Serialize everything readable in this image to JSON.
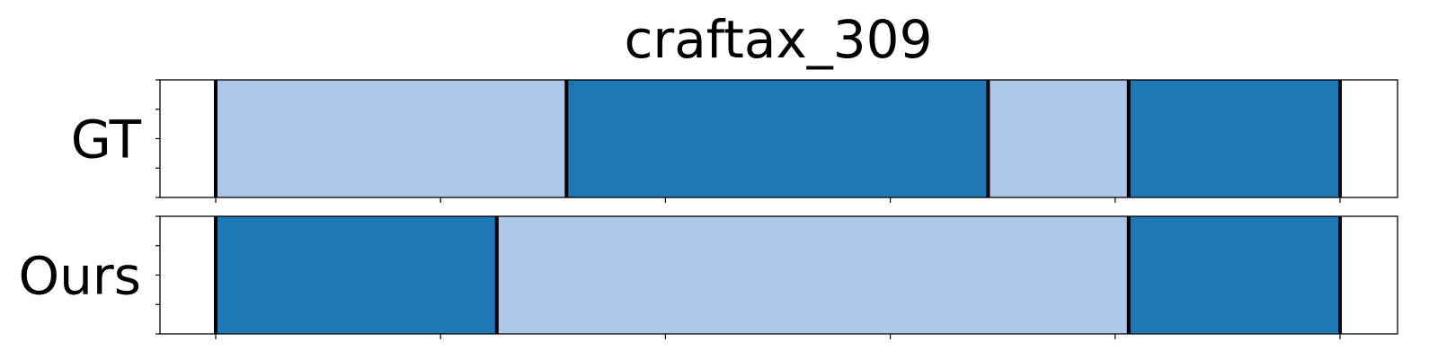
{
  "chart_data": {
    "type": "segment-timeline",
    "title": "craftax_309",
    "x_range": [
      0,
      100
    ],
    "x_ticks": [
      0,
      20,
      40,
      60,
      80,
      100
    ],
    "colors": {
      "dark": "#1f77b4",
      "light": "#aec7e8"
    },
    "rows": [
      {
        "label": "GT",
        "segments": [
          {
            "start": 0,
            "end": 31.2,
            "class": "light"
          },
          {
            "start": 31.2,
            "end": 68.7,
            "class": "dark"
          },
          {
            "start": 68.7,
            "end": 81.2,
            "class": "light"
          },
          {
            "start": 81.2,
            "end": 100,
            "class": "dark"
          }
        ],
        "boundaries": [
          0,
          31.2,
          68.7,
          81.2,
          100
        ]
      },
      {
        "label": "Ours",
        "segments": [
          {
            "start": 0,
            "end": 25,
            "class": "dark"
          },
          {
            "start": 25,
            "end": 81.2,
            "class": "light"
          },
          {
            "start": 81.2,
            "end": 100,
            "class": "dark"
          }
        ],
        "boundaries": [
          0,
          25,
          81.2,
          100
        ]
      }
    ]
  }
}
